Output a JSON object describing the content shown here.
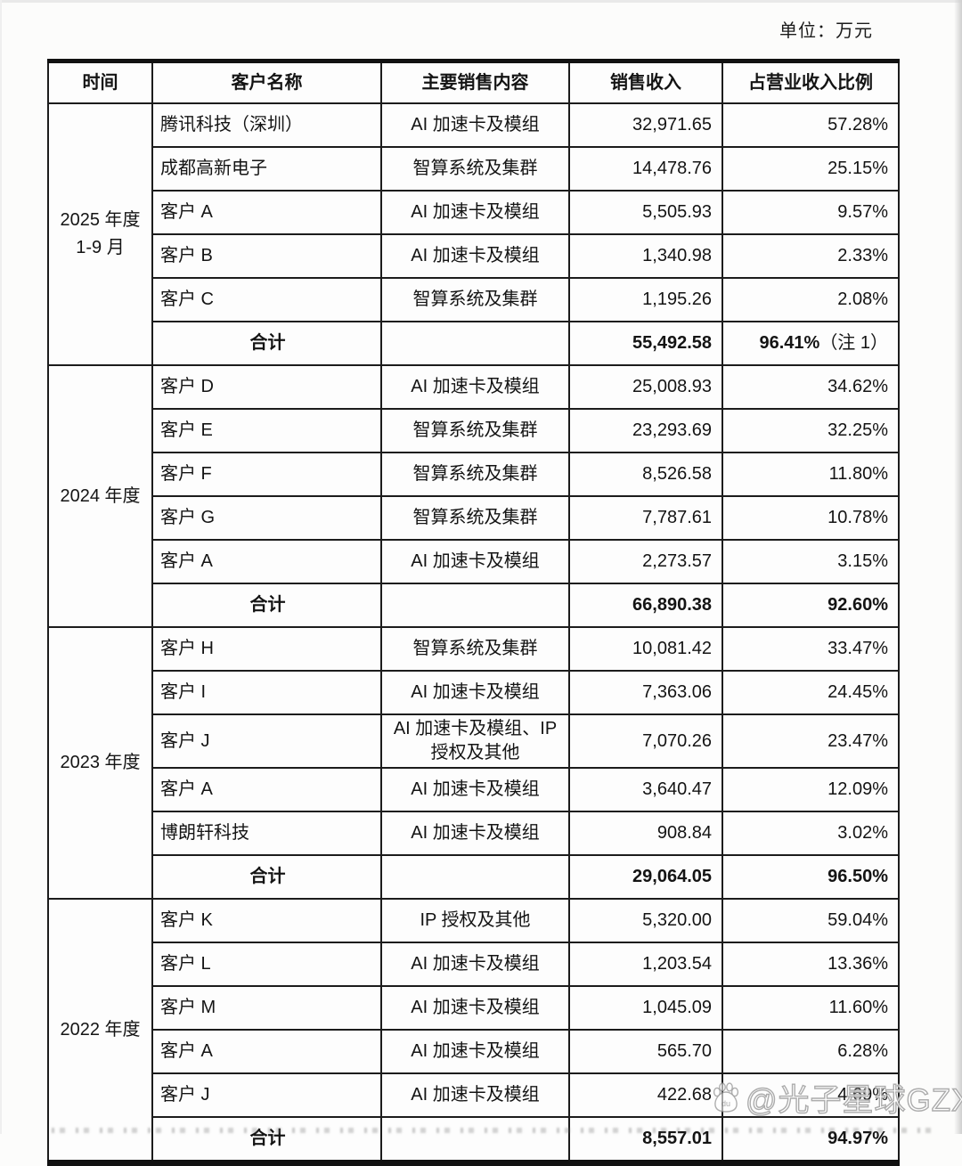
{
  "page": {
    "unit_label": "单位：万元"
  },
  "table": {
    "headers": [
      "时间",
      "客户名称",
      "主要销售内容",
      "销售收入",
      "占营业收入比例"
    ],
    "total_label": "合计",
    "sections": [
      {
        "period_line1": "2025 年度",
        "period_line2": "1-9 月",
        "rows": [
          {
            "customer": "腾讯科技（深圳）",
            "product": "AI 加速卡及模组",
            "revenue": "32,971.65",
            "share": "57.28%"
          },
          {
            "customer": "成都高新电子",
            "product": "智算系统及集群",
            "revenue": "14,478.76",
            "share": "25.15%"
          },
          {
            "customer": "客户 A",
            "product": "AI 加速卡及模组",
            "revenue": "5,505.93",
            "share": "9.57%"
          },
          {
            "customer": "客户 B",
            "product": "AI 加速卡及模组",
            "revenue": "1,340.98",
            "share": "2.33%"
          },
          {
            "customer": "客户 C",
            "product": "智算系统及集群",
            "revenue": "1,195.26",
            "share": "2.08%"
          }
        ],
        "total": {
          "revenue": "55,492.58",
          "share": "96.41%",
          "note": "（注 1）"
        }
      },
      {
        "period_line1": "2024 年度",
        "period_line2": "",
        "rows": [
          {
            "customer": "客户 D",
            "product": "AI 加速卡及模组",
            "revenue": "25,008.93",
            "share": "34.62%"
          },
          {
            "customer": "客户 E",
            "product": "智算系统及集群",
            "revenue": "23,293.69",
            "share": "32.25%"
          },
          {
            "customer": "客户 F",
            "product": "智算系统及集群",
            "revenue": "8,526.58",
            "share": "11.80%"
          },
          {
            "customer": "客户 G",
            "product": "智算系统及集群",
            "revenue": "7,787.61",
            "share": "10.78%"
          },
          {
            "customer": "客户 A",
            "product": "AI 加速卡及模组",
            "revenue": "2,273.57",
            "share": "3.15%"
          }
        ],
        "total": {
          "revenue": "66,890.38",
          "share": "92.60%",
          "note": ""
        }
      },
      {
        "period_line1": "2023 年度",
        "period_line2": "",
        "rows": [
          {
            "customer": "客户 H",
            "product": "智算系统及集群",
            "revenue": "10,081.42",
            "share": "33.47%"
          },
          {
            "customer": "客户 I",
            "product": "AI 加速卡及模组",
            "revenue": "7,363.06",
            "share": "24.45%"
          },
          {
            "customer": "客户 J",
            "product": "AI 加速卡及模组、IP 授权及其他",
            "revenue": "7,070.26",
            "share": "23.47%"
          },
          {
            "customer": "客户 A",
            "product": "AI 加速卡及模组",
            "revenue": "3,640.47",
            "share": "12.09%"
          },
          {
            "customer": "博朗轩科技",
            "product": "AI 加速卡及模组",
            "revenue": "908.84",
            "share": "3.02%"
          }
        ],
        "total": {
          "revenue": "29,064.05",
          "share": "96.50%",
          "note": ""
        }
      },
      {
        "period_line1": "2022 年度",
        "period_line2": "",
        "rows": [
          {
            "customer": "客户 K",
            "product": "IP 授权及其他",
            "revenue": "5,320.00",
            "share": "59.04%"
          },
          {
            "customer": "客户 L",
            "product": "AI 加速卡及模组",
            "revenue": "1,203.54",
            "share": "13.36%"
          },
          {
            "customer": "客户 M",
            "product": "AI 加速卡及模组",
            "revenue": "1,045.09",
            "share": "11.60%"
          },
          {
            "customer": "客户 A",
            "product": "AI 加速卡及模组",
            "revenue": "565.70",
            "share": "6.28%"
          },
          {
            "customer": "客户 J",
            "product": "AI 加速卡及模组",
            "revenue": "422.68",
            "share": "4.69%"
          }
        ],
        "total": {
          "revenue": "8,557.01",
          "share": "94.97%",
          "note": ""
        }
      }
    ]
  },
  "watermark": {
    "icon": "baidu-paw-icon",
    "icon_text": "du",
    "handle": "@光子星球GZXQ"
  }
}
